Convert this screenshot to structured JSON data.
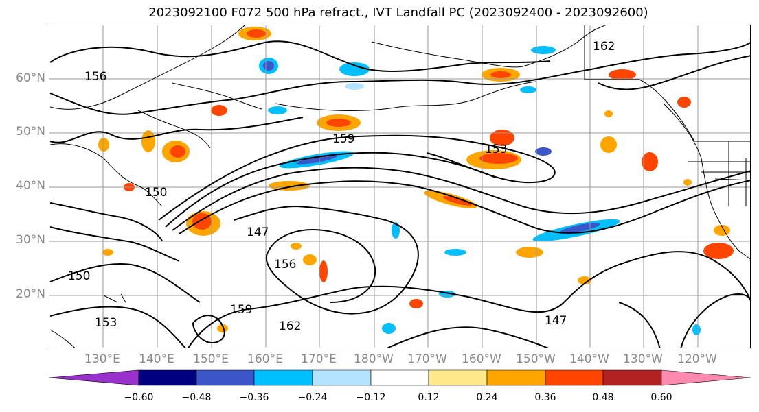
{
  "title": "2023092100 F072 500 hPa refract., IVT Landfall PC (2023092400 - 2023092600)",
  "latitude_labels": [
    "60°N",
    "50°N",
    "40°N",
    "30°N",
    "20°N"
  ],
  "longitude_labels": [
    "130°E",
    "140°E",
    "150°E",
    "160°E",
    "170°E",
    "180°W",
    "170°W",
    "160°W",
    "150°W",
    "140°W",
    "130°W",
    "120°W"
  ],
  "contour_labels": [
    "156",
    "159",
    "162",
    "150",
    "153",
    "147",
    "156",
    "159",
    "162",
    "153",
    "150",
    "147"
  ],
  "colorbar": {
    "ticks": [
      "−0.60",
      "−0.48",
      "−0.36",
      "−0.24",
      "−0.12",
      "0.12",
      "0.24",
      "0.36",
      "0.48",
      "0.60"
    ],
    "colors": [
      "#9932cc",
      "#000080",
      "#3a56c8",
      "#00bfff",
      "#b3e3ff",
      "#ffffff",
      "#ffe88a",
      "#ffa500",
      "#ff4500",
      "#b22222",
      "#ff8ab0"
    ]
  },
  "colors": {
    "land_outline": "#000000",
    "contour": "#000000",
    "gridline": "#9a9a9a",
    "axis_label": "#8a8a8a"
  }
}
